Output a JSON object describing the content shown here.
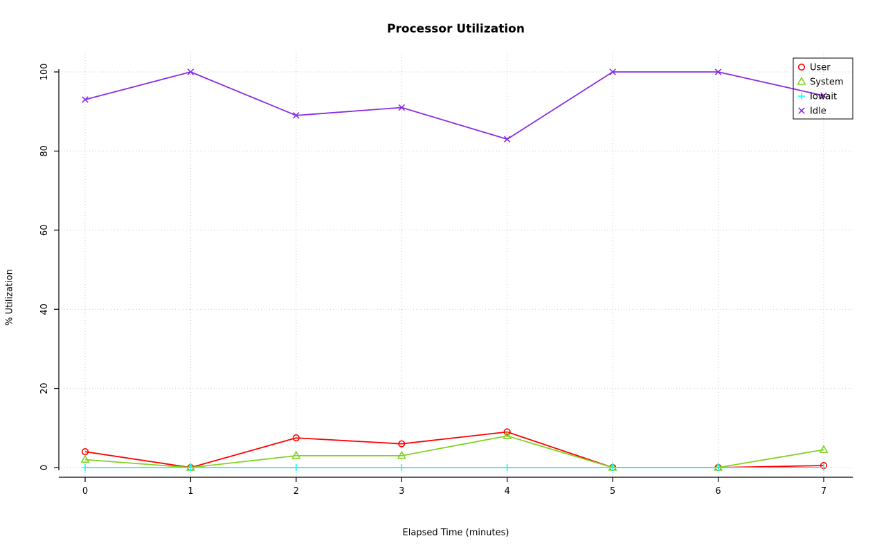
{
  "page": {
    "background": "#FFFFFF"
  },
  "chart_data": {
    "type": "line",
    "title": "Processor Utilization",
    "xlabel": "Elapsed Time (minutes)",
    "ylabel": "% Utilization",
    "x": [
      0,
      1,
      2,
      3,
      4,
      5,
      6,
      7
    ],
    "xticks": [
      "0",
      "1",
      "2",
      "3",
      "4",
      "5",
      "6",
      "7"
    ],
    "yticks": [
      "0",
      "20",
      "40",
      "60",
      "80",
      "100"
    ],
    "xlim": [
      0,
      7
    ],
    "ylim": [
      0,
      100
    ],
    "grid": "dotted",
    "grid_color": "#C9C9C9",
    "axis_color": "#000000",
    "legend_position": "top-right",
    "legend_items": [
      "User",
      "System",
      "Iowait",
      "Idle"
    ],
    "series": [
      {
        "name": "User",
        "color": "#FF0000",
        "marker": "circle",
        "values": [
          4,
          0,
          7.5,
          6,
          9,
          0,
          0,
          0.5
        ]
      },
      {
        "name": "System",
        "color": "#7ED321",
        "marker": "triangle",
        "values": [
          2,
          0,
          3,
          3,
          8,
          0,
          0,
          4.5
        ]
      },
      {
        "name": "Iowait",
        "color": "#00FFFF",
        "marker": "plus",
        "values": [
          0,
          0,
          0,
          0,
          0,
          0,
          0,
          0
        ]
      },
      {
        "name": "Idle",
        "color": "#8A2BE2",
        "marker": "cross",
        "values": [
          93,
          100,
          89,
          91,
          83,
          100,
          100,
          94
        ]
      }
    ]
  }
}
